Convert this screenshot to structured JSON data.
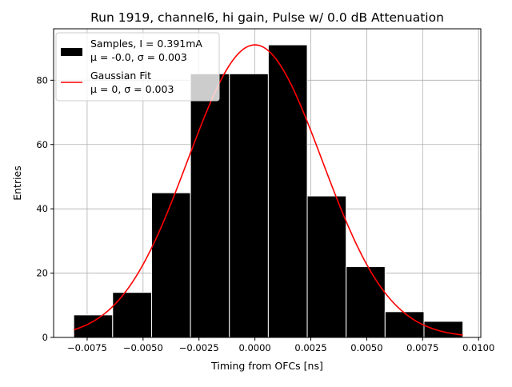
{
  "chart_data": {
    "type": "bar",
    "title": "Run 1919, channel6, hi gain, Pulse w/ 0.0 dB Attenuation",
    "xlabel": "Timing from OFCs [ns]",
    "ylabel": "Entries",
    "xlim": [
      -0.009,
      0.0101
    ],
    "ylim": [
      0,
      96
    ],
    "grid": true,
    "legend_position": "top-left",
    "x_ticks": [
      -0.0075,
      -0.005,
      -0.0025,
      0.0,
      0.0025,
      0.005,
      0.0075,
      0.01
    ],
    "x_tick_labels": [
      "−0.0075",
      "−0.0050",
      "−0.0025",
      "0.0000",
      "0.0025",
      "0.0050",
      "0.0075",
      "0.0100"
    ],
    "y_ticks": [
      0,
      20,
      40,
      60,
      80
    ],
    "y_tick_labels": [
      "0",
      "20",
      "40",
      "60",
      "80"
    ],
    "histogram": {
      "name": "Samples, I = 0.391mA",
      "name_line2": "μ = -0.0, σ = 0.003",
      "color": "#000000",
      "edge_color": "#ffffff",
      "bin_edges": [
        -0.0081,
        -0.00636,
        -0.00462,
        -0.00288,
        -0.00114,
        0.0006,
        0.00234,
        0.00408,
        0.00582,
        0.00756,
        0.0093
      ],
      "values": [
        7,
        14,
        45,
        82,
        82,
        91,
        44,
        22,
        8,
        5
      ]
    },
    "fit": {
      "name": "Gaussian Fit",
      "name_line2": "μ = 0, σ = 0.003",
      "color": "#ff0000",
      "mu": 0.0,
      "sigma": 0.003,
      "amplitude": 91,
      "x_range": [
        -0.0081,
        0.0093
      ]
    }
  }
}
